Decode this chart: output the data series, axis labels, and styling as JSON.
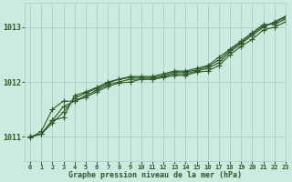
{
  "background_color": "#cceae0",
  "plot_bg_color": "#cceae0",
  "grid_color": "#a8d5c5",
  "line_color": "#2d5a27",
  "marker_color": "#2d5a27",
  "title": "Graphe pression niveau de la mer (hPa)",
  "title_color": "#2d5a27",
  "xlim": [
    -0.5,
    23
  ],
  "ylim": [
    1010.55,
    1013.45
  ],
  "yticks": [
    1011,
    1012,
    1013
  ],
  "xticks": [
    0,
    1,
    2,
    3,
    4,
    5,
    6,
    7,
    8,
    9,
    10,
    11,
    12,
    13,
    14,
    15,
    16,
    17,
    18,
    19,
    20,
    21,
    22,
    23
  ],
  "lines": [
    {
      "x": [
        0,
        1,
        2,
        3,
        4,
        5,
        6,
        7,
        8,
        9,
        10,
        11,
        12,
        13,
        14,
        15,
        16,
        17,
        18,
        19,
        20,
        21,
        22,
        23
      ],
      "y": [
        1011.0,
        1011.05,
        1011.3,
        1011.55,
        1011.65,
        1011.75,
        1011.85,
        1011.95,
        1012.0,
        1012.05,
        1012.05,
        1012.05,
        1012.1,
        1012.15,
        1012.15,
        1012.2,
        1012.25,
        1012.35,
        1012.55,
        1012.7,
        1012.85,
        1013.0,
        1013.1,
        1013.2
      ]
    },
    {
      "x": [
        0,
        1,
        2,
        3,
        4,
        5,
        6,
        7,
        8,
        9,
        10,
        11,
        12,
        13,
        14,
        15,
        16,
        17,
        18,
        19,
        20,
        21,
        22,
        23
      ],
      "y": [
        1011.0,
        1011.05,
        1011.25,
        1011.45,
        1011.7,
        1011.8,
        1011.88,
        1011.98,
        1012.05,
        1012.1,
        1012.1,
        1012.1,
        1012.15,
        1012.2,
        1012.2,
        1012.25,
        1012.3,
        1012.45,
        1012.6,
        1012.75,
        1012.9,
        1013.05,
        1013.05,
        1013.15
      ]
    },
    {
      "x": [
        0,
        1,
        2,
        3,
        4,
        5,
        6,
        7,
        8,
        9,
        10,
        11,
        12,
        13,
        14,
        15,
        16,
        17,
        18,
        19,
        20,
        21,
        22,
        23
      ],
      "y": [
        1010.98,
        1011.1,
        1011.5,
        1011.65,
        1011.65,
        1011.72,
        1011.82,
        1011.92,
        1011.98,
        1012.0,
        1012.05,
        1012.05,
        1012.08,
        1012.12,
        1012.12,
        1012.18,
        1012.2,
        1012.3,
        1012.5,
        1012.65,
        1012.78,
        1012.95,
        1013.0,
        1013.1
      ]
    },
    {
      "x": [
        0,
        1,
        2,
        3,
        4,
        5,
        6,
        7,
        8,
        9,
        10,
        11,
        12,
        13,
        14,
        15,
        16,
        17,
        18,
        19,
        20,
        21,
        22,
        23
      ],
      "y": [
        1011.0,
        1011.05,
        1011.3,
        1011.35,
        1011.75,
        1011.82,
        1011.9,
        1012.0,
        1012.05,
        1012.08,
        1012.08,
        1012.08,
        1012.12,
        1012.18,
        1012.18,
        1012.22,
        1012.28,
        1012.4,
        1012.58,
        1012.72,
        1012.88,
        1013.02,
        1013.08,
        1013.18
      ]
    }
  ]
}
